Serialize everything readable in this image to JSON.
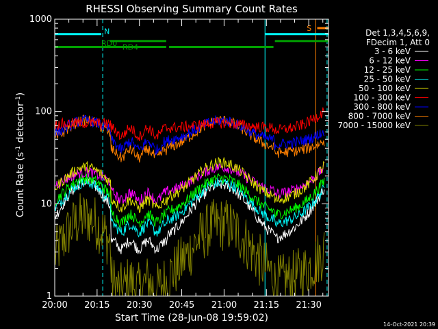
{
  "chart_data": {
    "type": "line",
    "title": "RHESSI Observing Summary Count Rates",
    "xlabel": "Start Time (28-Jun-08 19:59:02)",
    "ylabel_main": "Count Rate (s",
    "ylabel_sup1": "-1",
    "ylabel_mid": " detector",
    "ylabel_sup2": "-1",
    "ylabel_end": ")",
    "y_scale": "log",
    "ylim": [
      1,
      1000
    ],
    "xlim_minutes": [
      0,
      97
    ],
    "x_ticks": [
      {
        "minute": 0,
        "label": "20:00"
      },
      {
        "minute": 15,
        "label": "20:15"
      },
      {
        "minute": 30,
        "label": "20:30"
      },
      {
        "minute": 45,
        "label": "20:45"
      },
      {
        "minute": 60,
        "label": "21:00"
      },
      {
        "minute": 75,
        "label": "21:15"
      },
      {
        "minute": 90,
        "label": "21:30"
      }
    ],
    "y_ticks": [
      {
        "value": 1,
        "label": "1"
      },
      {
        "value": 10,
        "label": "10"
      },
      {
        "value": 100,
        "label": "100"
      },
      {
        "value": 1000,
        "label": "1000"
      }
    ],
    "legend_header": [
      "Det 1,3,4,5,6,9,",
      "FDecim 1, Att 0"
    ],
    "legend_position": "right",
    "series": [
      {
        "name": "3 - 6 keV",
        "color": "#ffffff",
        "levels": {
          "peak1": 17,
          "dip1": 3.6,
          "peak2": 16,
          "dip2": 3.6,
          "tail": 14
        }
      },
      {
        "name": "6 - 12 keV",
        "color": "#ff00ff",
        "levels": {
          "peak1": 22,
          "dip1": 12,
          "peak2": 25,
          "dip2": 12,
          "tail": 24
        }
      },
      {
        "name": "12 - 25 keV",
        "color": "#00ff00",
        "levels": {
          "peak1": 19,
          "dip1": 7,
          "peak2": 19,
          "dip2": 7,
          "tail": 17
        }
      },
      {
        "name": "25 - 50 keV",
        "color": "#00ffff",
        "levels": {
          "peak1": 17,
          "dip1": 5.5,
          "peak2": 17,
          "dip2": 5.5,
          "tail": 14
        }
      },
      {
        "name": "50 - 100 keV",
        "color": "#e0e000",
        "levels": {
          "peak1": 25,
          "dip1": 10,
          "peak2": 28,
          "dip2": 10,
          "tail": 25
        }
      },
      {
        "name": "100 - 300 keV",
        "color": "#ff0000",
        "levels": {
          "peak1": 75,
          "dip1": 60,
          "peak2": 75,
          "dip2": 60,
          "tail": 100
        }
      },
      {
        "name": "300 - 800 keV",
        "color": "#0000ff",
        "levels": {
          "peak1": 80,
          "dip1": 43,
          "peak2": 80,
          "dip2": 43,
          "tail": 60
        }
      },
      {
        "name": "800 - 7000 keV",
        "color": "#ff8000",
        "levels": {
          "peak1": 80,
          "dip1": 35,
          "peak2": 80,
          "dip2": 35,
          "tail": 47
        }
      },
      {
        "name": "7000 - 15000 keV",
        "color": "#808000",
        "levels": {
          "peak1": 7,
          "dip1": 1.3,
          "peak2": 6,
          "dip2": 1.3,
          "tail": 3
        }
      }
    ],
    "flag_bars": [
      {
        "label": "N",
        "color": "#00ffff",
        "segments": [
          [
            0,
            16.5
          ],
          [
            74.5,
            97
          ]
        ],
        "level": 690
      },
      {
        "label": "RD0",
        "color": "#00a000",
        "segments": [
          [
            19.5,
            39.5
          ],
          [
            78,
            97
          ]
        ],
        "level": 580
      },
      {
        "label": "RD4",
        "color": "#00a000",
        "segments": [
          [
            0,
            39.5
          ],
          [
            40.5,
            77.5
          ]
        ],
        "level": 500
      },
      {
        "label": "S",
        "color": "#ff8000",
        "segments": [
          [
            93,
            97
          ]
        ],
        "level": 800
      }
    ],
    "vertical_markers": [
      {
        "minute": 0,
        "color": "#00ffff",
        "style": "solid"
      },
      {
        "minute": 17,
        "color": "#00ffff",
        "style": "dashed"
      },
      {
        "minute": 74.5,
        "color": "#00ffff",
        "style": "solid"
      },
      {
        "minute": 92.5,
        "color": "#ff8000",
        "style": "solid"
      },
      {
        "minute": 96.5,
        "color": "#00ffff",
        "style": "dashed"
      }
    ]
  },
  "footer": {
    "timestamp": "14-Oct-2021 20:39"
  }
}
